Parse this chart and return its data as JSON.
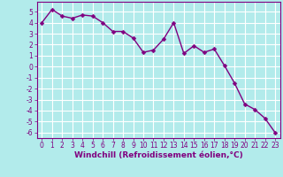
{
  "x": [
    0,
    1,
    2,
    3,
    4,
    5,
    6,
    7,
    8,
    9,
    10,
    11,
    12,
    13,
    14,
    15,
    16,
    17,
    18,
    19,
    20,
    21,
    22,
    23
  ],
  "y": [
    4.0,
    5.2,
    4.6,
    4.4,
    4.7,
    4.6,
    4.0,
    3.2,
    3.2,
    2.6,
    1.3,
    1.5,
    2.5,
    4.0,
    1.2,
    1.9,
    1.3,
    1.6,
    0.1,
    -1.5,
    -3.4,
    -3.9,
    -4.7,
    -6.0
  ],
  "xlabel": "Windchill (Refroidissement éolien,°C)",
  "xlim": [
    -0.5,
    23.5
  ],
  "ylim": [
    -6.5,
    5.9
  ],
  "yticks": [
    5,
    4,
    3,
    2,
    1,
    0,
    -1,
    -2,
    -3,
    -4,
    -5,
    -6
  ],
  "xticks": [
    0,
    1,
    2,
    3,
    4,
    5,
    6,
    7,
    8,
    9,
    10,
    11,
    12,
    13,
    14,
    15,
    16,
    17,
    18,
    19,
    20,
    21,
    22,
    23
  ],
  "line_color": "#800080",
  "marker_color": "#800080",
  "bg_color": "#b2ebeb",
  "grid_color": "#ffffff",
  "xlabel_color": "#800080",
  "tick_color": "#800080",
  "line_width": 1.0,
  "marker_size": 2.5,
  "tick_fontsize": 5.5,
  "xlabel_fontsize": 6.5
}
